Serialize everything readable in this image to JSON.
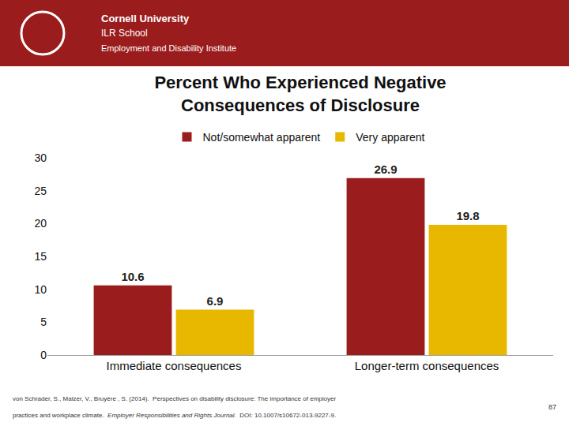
{
  "chart_data": {
    "type": "bar",
    "title": "Percent Who Experienced Negative\nConsequences of Disclosure",
    "categories": [
      "Immediate consequences",
      "Longer-term consequences"
    ],
    "series": [
      {
        "name": "Not/somewhat apparent",
        "color": "#9B1C1C",
        "values": [
          10.6,
          26.9
        ]
      },
      {
        "name": "Very apparent",
        "color": "#E8B800",
        "values": [
          6.9,
          19.8
        ]
      }
    ],
    "ylim": [
      0,
      30
    ],
    "yticks": [
      0,
      5,
      10,
      15,
      20,
      25,
      30
    ],
    "grid": false,
    "legend": "top",
    "data_labels": true,
    "annotations": [
      "Cornell University",
      "ILR School",
      "Employment and Disability Institute",
      "von Schrader, S., Malzer, V., Bruyère , S. (2014).  Perspectives on disability disclosure: The importance of employer",
      "practices and workplace climate.",
      "Employer Responsibilities and Rights Journal.",
      "DOI: 10.1007/s10672-013-9227-9.",
      "87"
    ]
  }
}
